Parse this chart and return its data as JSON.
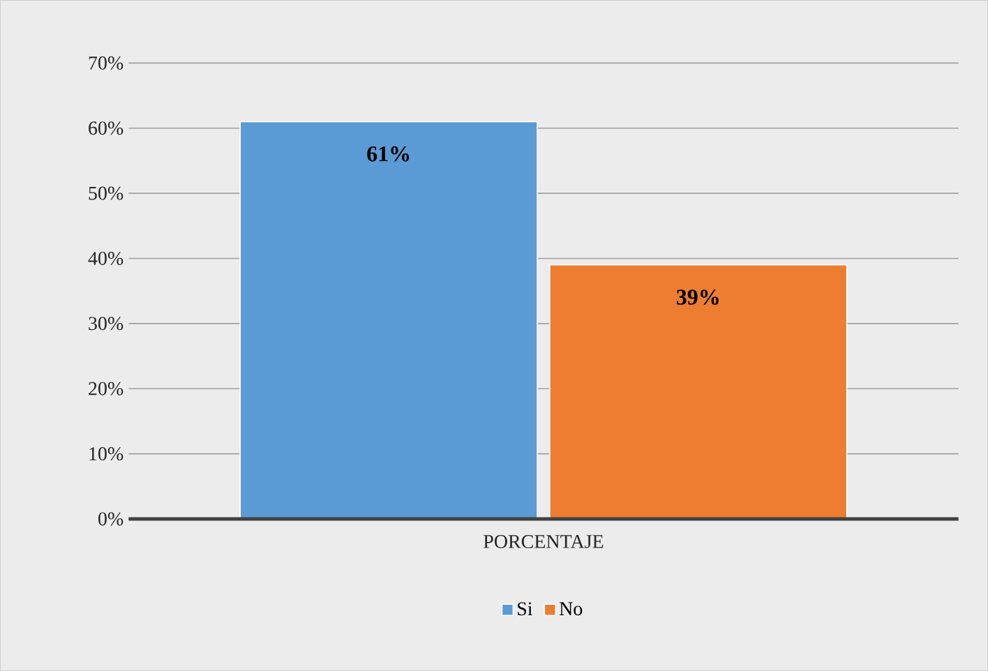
{
  "chart_data": {
    "type": "bar",
    "categories": [
      "PORCENTAJE"
    ],
    "series": [
      {
        "name": "Si",
        "color": "#5b9bd5",
        "values": [
          61
        ],
        "value_labels": [
          "61%"
        ]
      },
      {
        "name": "No",
        "color": "#ed7d31",
        "values": [
          39
        ],
        "value_labels": [
          "39%"
        ]
      }
    ],
    "ylim": [
      0,
      70
    ],
    "yticks": [
      {
        "value": 0,
        "label": "0%"
      },
      {
        "value": 10,
        "label": "10%"
      },
      {
        "value": 20,
        "label": "20%"
      },
      {
        "value": 30,
        "label": "30%"
      },
      {
        "value": 40,
        "label": "40%"
      },
      {
        "value": 50,
        "label": "50%"
      },
      {
        "value": 60,
        "label": "60%"
      },
      {
        "value": 70,
        "label": "70%"
      }
    ],
    "grid": "y",
    "legend": "bottom"
  }
}
